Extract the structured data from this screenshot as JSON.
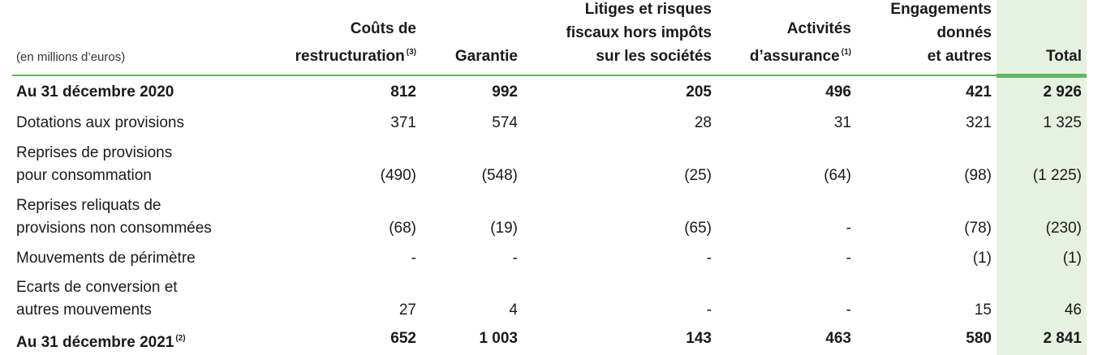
{
  "table": {
    "unit_label": "(en millions d’euros)",
    "headers": [
      {
        "lines": [
          "Coûts de",
          "restructuration"
        ],
        "note": "(3)"
      },
      {
        "lines": [
          "Garantie"
        ],
        "note": ""
      },
      {
        "lines": [
          "Litiges et risques",
          "fiscaux hors impôts",
          "sur les sociétés"
        ],
        "note": ""
      },
      {
        "lines": [
          "Activités",
          "d’assurance"
        ],
        "note": "(1)"
      },
      {
        "lines": [
          "Engagements",
          "donnés",
          "et autres"
        ],
        "note": ""
      },
      {
        "lines": [
          "Total"
        ],
        "note": ""
      }
    ],
    "rows": [
      {
        "label_lines": [
          "Au 31 décembre 2020"
        ],
        "note": "",
        "bold": true,
        "values": [
          "812",
          "992",
          "205",
          "496",
          "421",
          "2 926"
        ]
      },
      {
        "label_lines": [
          "Dotations aux provisions"
        ],
        "note": "",
        "bold": false,
        "values": [
          "371",
          "574",
          "28",
          "31",
          "321",
          "1 325"
        ]
      },
      {
        "label_lines": [
          "Reprises de provisions",
          "pour consommation"
        ],
        "note": "",
        "bold": false,
        "values": [
          "(490)",
          "(548)",
          "(25)",
          "(64)",
          "(98)",
          "(1 225)"
        ]
      },
      {
        "label_lines": [
          "Reprises reliquats de",
          "provisions non consommées"
        ],
        "note": "",
        "bold": false,
        "values": [
          "(68)",
          "(19)",
          "(65)",
          "-",
          "(78)",
          "(230)"
        ]
      },
      {
        "label_lines": [
          "Mouvements de périmètre"
        ],
        "note": "",
        "bold": false,
        "values": [
          "-",
          "-",
          "-",
          "-",
          "(1)",
          "(1)"
        ]
      },
      {
        "label_lines": [
          "Ecarts de conversion et",
          "autres mouvements"
        ],
        "note": "",
        "bold": false,
        "values": [
          "27",
          "4",
          "-",
          "-",
          "15",
          "46"
        ]
      },
      {
        "label_lines": [
          "Au 31 décembre 2021"
        ],
        "note": "(2)",
        "bold": true,
        "values": [
          "652",
          "1 003",
          "143",
          "463",
          "580",
          "2 841"
        ]
      }
    ]
  },
  "colors": {
    "accent_green": "#5fb760",
    "total_column_bg": "#e6f2e0"
  }
}
